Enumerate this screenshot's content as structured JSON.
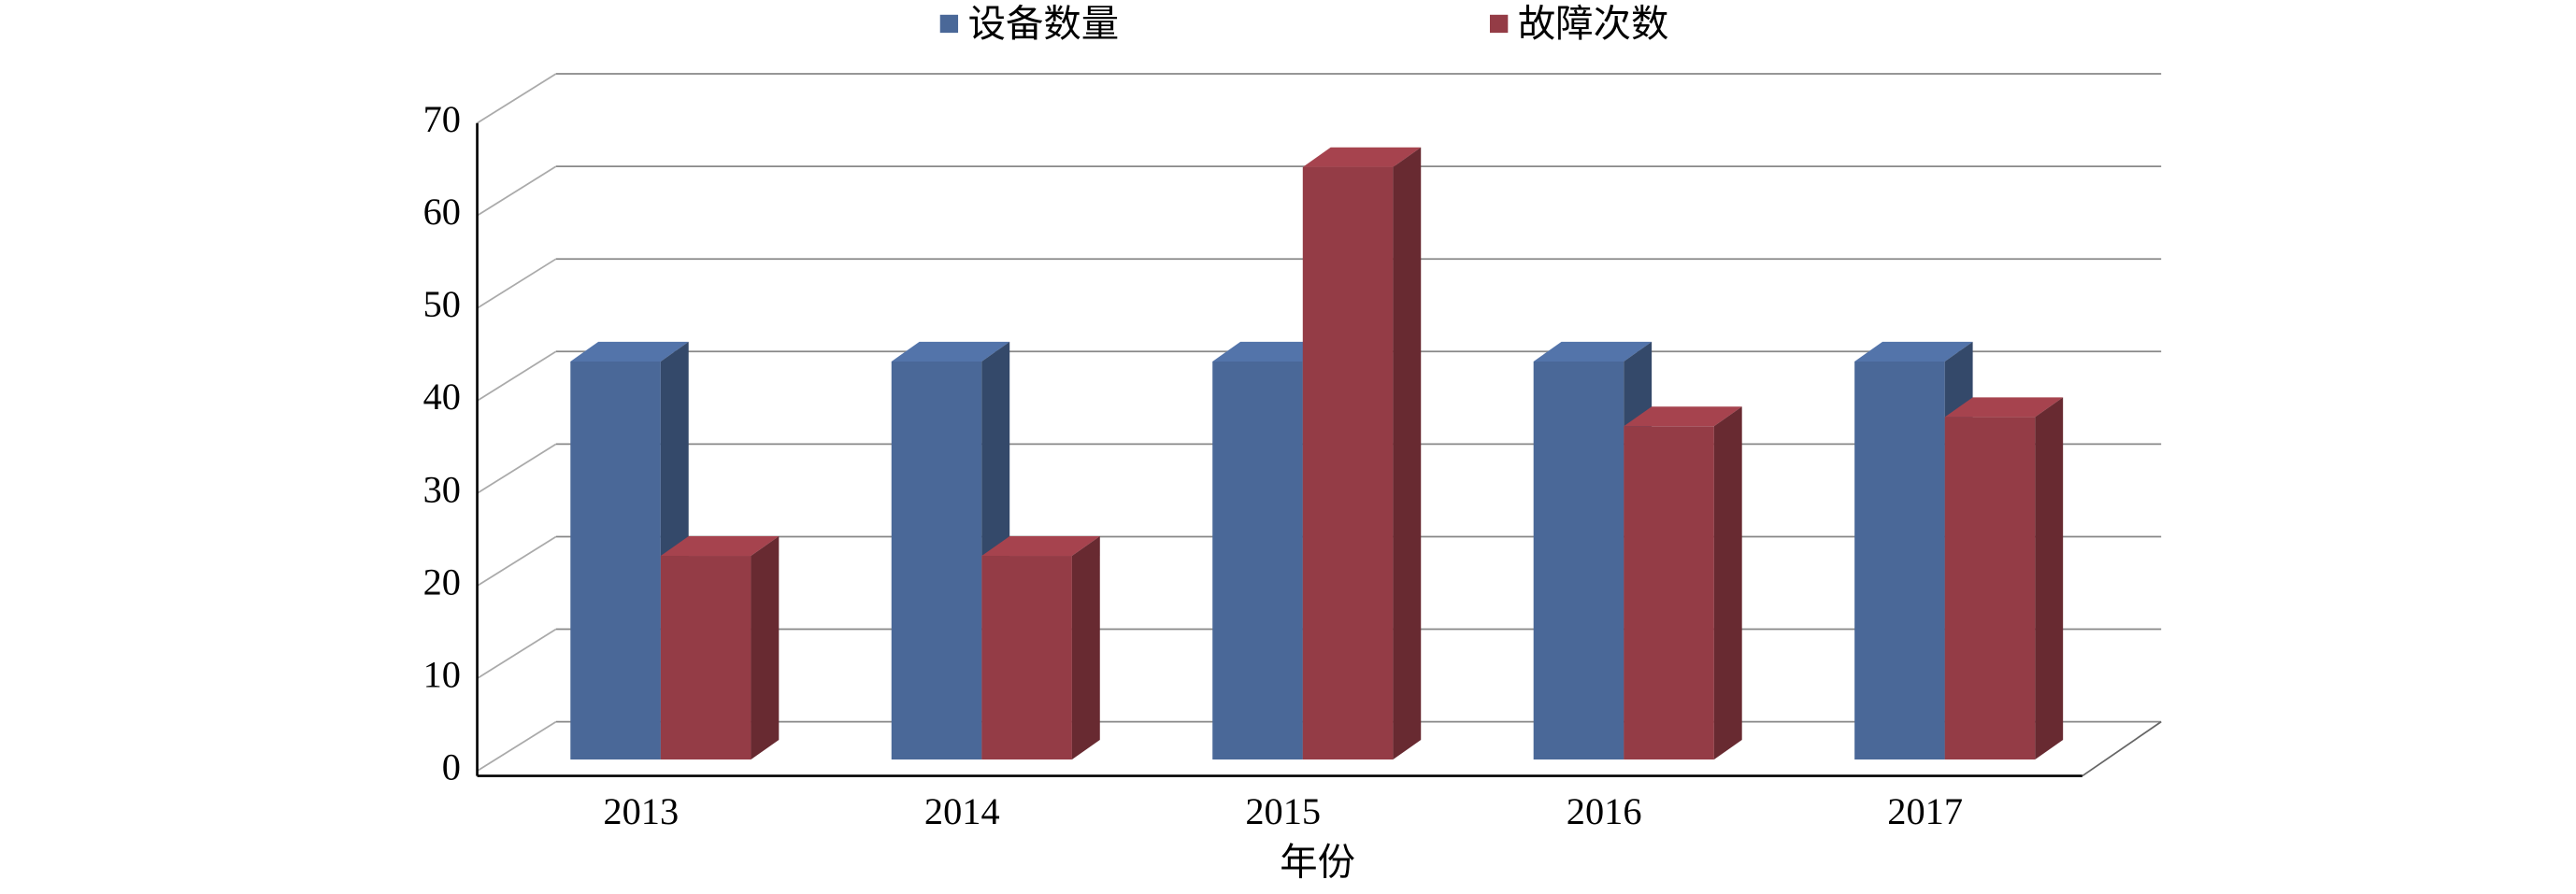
{
  "chart_data": {
    "type": "bar3d",
    "x_label": "年份",
    "categories": [
      "2013",
      "2014",
      "2015",
      "2016",
      "2017"
    ],
    "series": [
      {
        "name": "设备数量",
        "color": "#4a6898",
        "values": [
          43,
          43,
          43,
          43,
          43
        ]
      },
      {
        "name": "故障次数",
        "color": "#943c46",
        "values": [
          22,
          22,
          64,
          36,
          37
        ]
      }
    ],
    "ylim": [
      0,
      70
    ],
    "yticks": [
      0,
      10,
      20,
      30,
      40,
      50,
      60,
      70
    ],
    "grid": true,
    "legend": "top"
  }
}
